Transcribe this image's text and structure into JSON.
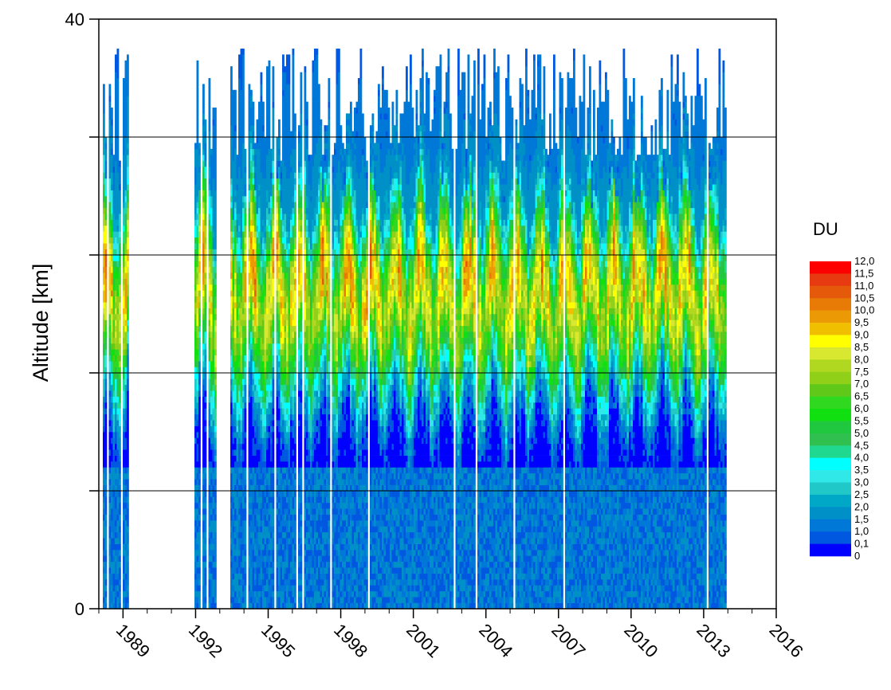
{
  "chart_data": {
    "type": "heatmap",
    "title": "",
    "xlabel": "",
    "ylabel": "Altitude [km]",
    "xlim": [
      1988,
      2016
    ],
    "ylim": [
      0,
      40
    ],
    "x_ticks": [
      1989,
      1992,
      1995,
      1998,
      2001,
      2004,
      2007,
      2010,
      2013,
      2016
    ],
    "y_ticks": [
      "0",
      "40"
    ],
    "y_gridlines": [
      8,
      16,
      24,
      32
    ],
    "grid": "horizontal",
    "data_years": [
      [
        1988.1,
        1989.2
      ],
      [
        1991.9,
        1992.8
      ],
      [
        1993.4,
        2013.9
      ]
    ],
    "colorbar": {
      "title": "DU",
      "placement": "right",
      "labels": [
        "12,0",
        "11,5",
        "11,0",
        "10,5",
        "10,0",
        "9,5",
        "9,0",
        "8,5",
        "8,0",
        "7,5",
        "7,0",
        "6,5",
        "6,0",
        "5,5",
        "5,0",
        "4,5",
        "4,0",
        "3,5",
        "3,0",
        "2,5",
        "2,0",
        "1,5",
        "1,0",
        "0,1",
        "0"
      ],
      "colors": [
        "#ff0000",
        "#e83a10",
        "#e55a0a",
        "#e87a06",
        "#eb9a06",
        "#f0c000",
        "#ffff00",
        "#d8e830",
        "#b0d820",
        "#90d018",
        "#60c818",
        "#30d820",
        "#10e010",
        "#20c840",
        "#30c050",
        "#20d890",
        "#00ffff",
        "#30e8e8",
        "#20c8c8",
        "#00a8c8",
        "#0090c8",
        "#0078d8",
        "#0058e0",
        "#0000ff"
      ]
    }
  }
}
